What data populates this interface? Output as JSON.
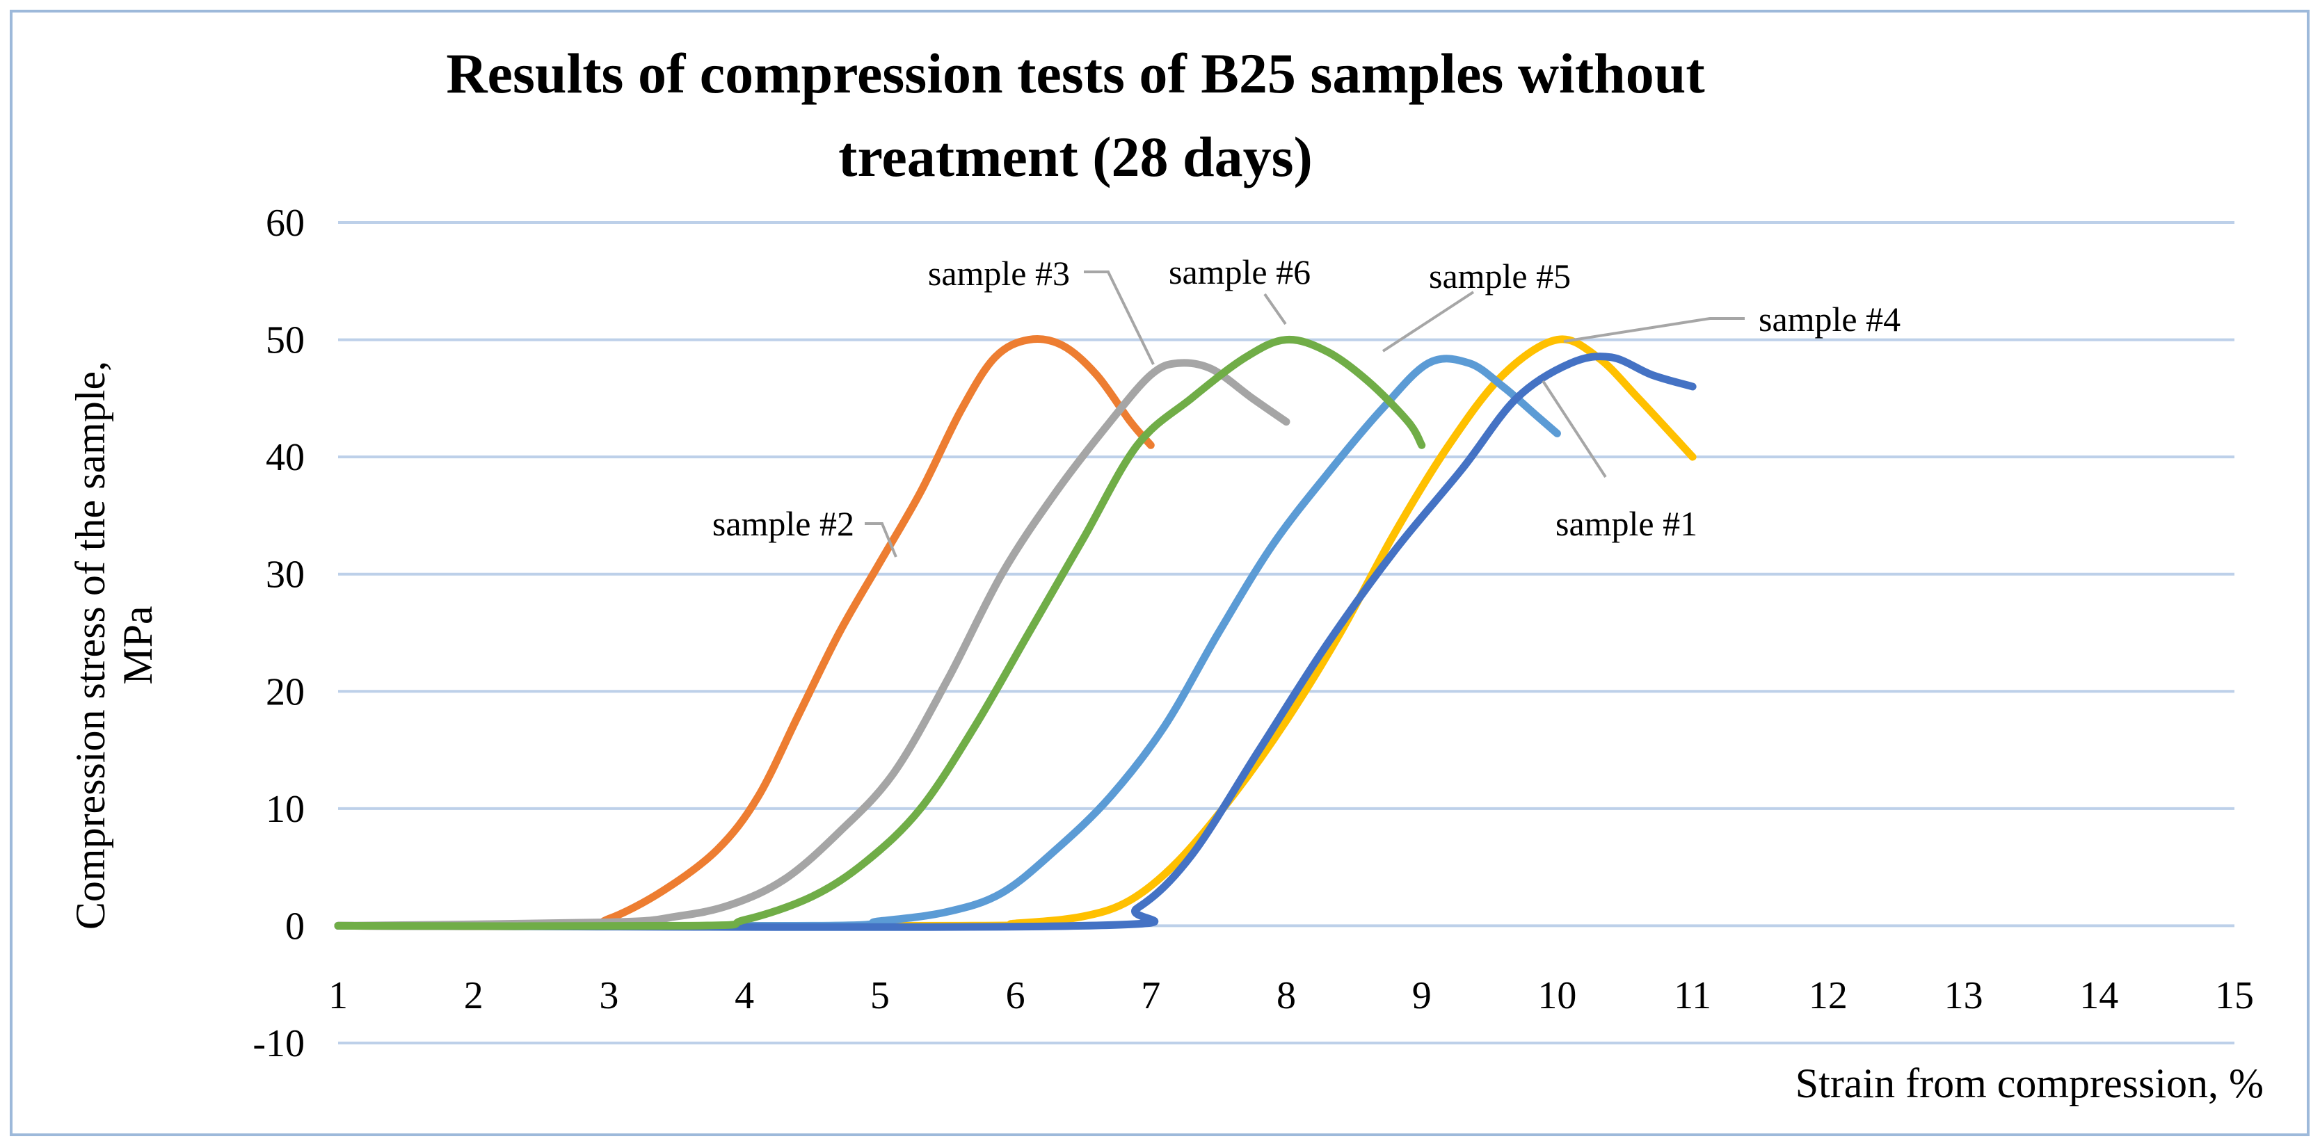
{
  "chart_data": {
    "type": "line",
    "title_lines": [
      "Results of compression tests of B25 samples without",
      "treatment (28 days)"
    ],
    "xlabel": "Strain from compression, %",
    "ylabel_lines": [
      "Compression stress of the sample,",
      "MPa"
    ],
    "xlim": [
      1,
      15
    ],
    "ylim": [
      -10,
      60
    ],
    "xticks": [
      "1",
      "2",
      "3",
      "4",
      "5",
      "6",
      "7",
      "8",
      "9",
      "10",
      "11",
      "12",
      "13",
      "14",
      "15"
    ],
    "yticks": [
      "-10",
      "0",
      "10",
      "20",
      "30",
      "40",
      "50",
      "60"
    ],
    "grid": true,
    "series": [
      {
        "name": "sample #1",
        "color": "#4472c4",
        "label": "sample #1",
        "points": [
          [
            1,
            0
          ],
          [
            6.5,
            0
          ],
          [
            6.9,
            1.5
          ],
          [
            7.3,
            6
          ],
          [
            7.8,
            15
          ],
          [
            8.3,
            24
          ],
          [
            8.8,
            32
          ],
          [
            9.3,
            39
          ],
          [
            9.7,
            45
          ],
          [
            10.1,
            48
          ],
          [
            10.4,
            48.5
          ],
          [
            10.7,
            47
          ],
          [
            11,
            46
          ]
        ]
      },
      {
        "name": "sample #2",
        "color": "#ed7d31",
        "label": "sample #2",
        "points": [
          [
            1,
            0
          ],
          [
            2.7,
            0
          ],
          [
            3.0,
            0.6
          ],
          [
            3.4,
            3
          ],
          [
            3.8,
            6.5
          ],
          [
            4.1,
            11
          ],
          [
            4.4,
            18
          ],
          [
            4.7,
            25
          ],
          [
            5.0,
            31
          ],
          [
            5.3,
            37
          ],
          [
            5.6,
            44
          ],
          [
            5.85,
            48.5
          ],
          [
            6.1,
            50
          ],
          [
            6.35,
            49.5
          ],
          [
            6.6,
            47
          ],
          [
            6.85,
            43
          ],
          [
            7.0,
            41
          ]
        ]
      },
      {
        "name": "sample #3",
        "color": "#a5a5a5",
        "label": "sample #3",
        "points": [
          [
            1,
            0
          ],
          [
            3.0,
            0.3
          ],
          [
            3.5,
            0.8
          ],
          [
            3.9,
            1.8
          ],
          [
            4.3,
            4
          ],
          [
            4.7,
            8
          ],
          [
            5.1,
            13
          ],
          [
            5.5,
            21
          ],
          [
            5.9,
            30
          ],
          [
            6.3,
            37
          ],
          [
            6.7,
            43
          ],
          [
            7.0,
            47
          ],
          [
            7.2,
            48
          ],
          [
            7.45,
            47.5
          ],
          [
            7.75,
            45
          ],
          [
            8.0,
            43
          ]
        ]
      },
      {
        "name": "sample #4",
        "color": "#ffc000",
        "label": "sample #4",
        "points": [
          [
            1,
            0
          ],
          [
            5.5,
            0
          ],
          [
            6.0,
            0.2
          ],
          [
            6.5,
            0.8
          ],
          [
            6.85,
            2.2
          ],
          [
            7.2,
            5.5
          ],
          [
            7.6,
            11
          ],
          [
            8.0,
            17.5
          ],
          [
            8.4,
            25
          ],
          [
            8.8,
            33.5
          ],
          [
            9.2,
            41
          ],
          [
            9.6,
            47
          ],
          [
            10.0,
            50
          ],
          [
            10.3,
            48.5
          ],
          [
            10.6,
            45
          ],
          [
            11.0,
            40
          ]
        ]
      },
      {
        "name": "sample #5",
        "color": "#5b9bd5",
        "label": "sample #5",
        "points": [
          [
            1,
            0
          ],
          [
            4.5,
            0
          ],
          [
            5.0,
            0.4
          ],
          [
            5.5,
            1.2
          ],
          [
            5.9,
            2.8
          ],
          [
            6.3,
            6.5
          ],
          [
            6.7,
            11
          ],
          [
            7.1,
            17
          ],
          [
            7.5,
            25
          ],
          [
            7.9,
            32.5
          ],
          [
            8.3,
            38.5
          ],
          [
            8.7,
            44
          ],
          [
            9.05,
            48
          ],
          [
            9.35,
            48
          ],
          [
            9.6,
            46
          ],
          [
            9.85,
            43.5
          ],
          [
            10.0,
            42
          ]
        ]
      },
      {
        "name": "sample #6",
        "color": "#70ad47",
        "label": "sample #6",
        "points": [
          [
            1,
            0
          ],
          [
            3.6,
            0
          ],
          [
            4.0,
            0.5
          ],
          [
            4.5,
            2.5
          ],
          [
            4.9,
            5.5
          ],
          [
            5.3,
            10
          ],
          [
            5.7,
            17
          ],
          [
            6.1,
            25
          ],
          [
            6.5,
            33
          ],
          [
            6.9,
            41
          ],
          [
            7.3,
            45
          ],
          [
            7.7,
            48.5
          ],
          [
            8.0,
            50
          ],
          [
            8.3,
            49
          ],
          [
            8.6,
            46.5
          ],
          [
            8.9,
            43
          ],
          [
            9.0,
            41
          ]
        ]
      }
    ]
  }
}
